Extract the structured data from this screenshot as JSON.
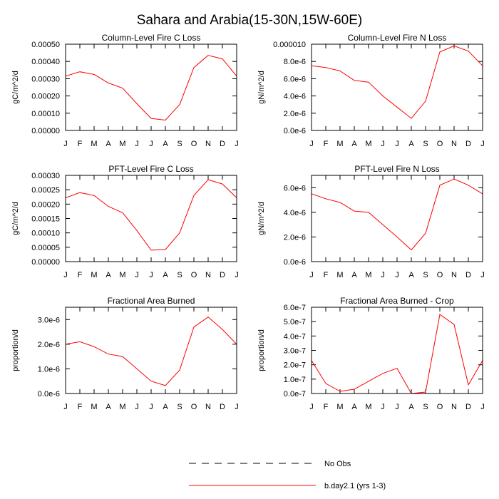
{
  "title": "Sahara and Arabia(15-30N,15W-60E)",
  "legend": [
    {
      "label": "No Obs",
      "style": "dashed",
      "color": "#000000"
    },
    {
      "label": "b.day2.1 (yrs 1-3)",
      "style": "solid",
      "color": "#ff0000"
    }
  ],
  "chart_data": [
    {
      "type": "line",
      "title": "Column-Level Fire C Loss",
      "ylabel": "gC/m^2/d",
      "categories": [
        "J",
        "F",
        "M",
        "A",
        "M",
        "J",
        "J",
        "A",
        "S",
        "O",
        "N",
        "D",
        "J"
      ],
      "ylim": [
        0,
        0.0005
      ],
      "yticks": [
        0,
        0.0001,
        0.0002,
        0.0003,
        0.0004,
        0.0005
      ],
      "ytick_labels": [
        "0.00000",
        "0.00010",
        "0.00020",
        "0.00030",
        "0.00040",
        "0.00050"
      ],
      "series": [
        {
          "name": "b.day2.1 (yrs 1-3)",
          "color": "#ff0000",
          "values": [
            0.000315,
            0.00034,
            0.000325,
            0.000275,
            0.000245,
            0.000155,
            7e-05,
            6e-05,
            0.00015,
            0.000365,
            0.000435,
            0.000415,
            0.000315
          ]
        }
      ]
    },
    {
      "type": "line",
      "title": "Column-Level Fire N Loss",
      "ylabel": "gN/m^2/d",
      "categories": [
        "J",
        "F",
        "M",
        "A",
        "M",
        "J",
        "J",
        "A",
        "S",
        "O",
        "N",
        "D",
        "J"
      ],
      "ylim": [
        0,
        1e-05
      ],
      "yticks": [
        0,
        2e-06,
        4e-06,
        6e-06,
        8e-06,
        1e-05
      ],
      "ytick_labels": [
        "0.0e-6",
        "2.0e-6",
        "4.0e-6",
        "6.0e-6",
        "8.0e-6",
        "0.000010"
      ],
      "series": [
        {
          "name": "b.day2.1 (yrs 1-3)",
          "color": "#ff0000",
          "values": [
            7.5e-06,
            7.3e-06,
            6.9e-06,
            5.8e-06,
            5.6e-06,
            4e-06,
            2.7e-06,
            1.4e-06,
            3.4e-06,
            9.1e-06,
            9.8e-06,
            9.2e-06,
            7.5e-06
          ]
        }
      ]
    },
    {
      "type": "line",
      "title": "PFT-Level Fire C Loss",
      "ylabel": "gC/m^2/d",
      "categories": [
        "J",
        "F",
        "M",
        "A",
        "M",
        "J",
        "J",
        "A",
        "S",
        "O",
        "N",
        "D",
        "J"
      ],
      "ylim": [
        0,
        0.0003
      ],
      "yticks": [
        0,
        5e-05,
        0.0001,
        0.00015,
        0.0002,
        0.00025,
        0.0003
      ],
      "ytick_labels": [
        "0.00000",
        "0.00005",
        "0.00010",
        "0.00015",
        "0.00020",
        "0.00025",
        "0.00030"
      ],
      "series": [
        {
          "name": "b.day2.1 (yrs 1-3)",
          "color": "#ff0000",
          "values": [
            0.000222,
            0.00024,
            0.00023,
            0.000192,
            0.00017,
            0.000108,
            4e-05,
            4.2e-05,
            0.0001,
            0.00023,
            0.000285,
            0.00027,
            0.000222
          ]
        }
      ]
    },
    {
      "type": "line",
      "title": "PFT-Level Fire N Loss",
      "ylabel": "gN/m^2/d",
      "categories": [
        "J",
        "F",
        "M",
        "A",
        "M",
        "J",
        "J",
        "A",
        "S",
        "O",
        "N",
        "D",
        "J"
      ],
      "ylim": [
        0,
        7e-06
      ],
      "yticks": [
        0,
        2e-06,
        4e-06,
        6e-06
      ],
      "ytick_labels": [
        "0.0e-6",
        "2.0e-6",
        "4.0e-6",
        "6.0e-6"
      ],
      "series": [
        {
          "name": "b.day2.1 (yrs 1-3)",
          "color": "#ff0000",
          "values": [
            5.5e-06,
            5.1e-06,
            4.8e-06,
            4.1e-06,
            4e-06,
            3e-06,
            2e-06,
            9.5e-07,
            2.3e-06,
            6.2e-06,
            6.7e-06,
            6.2e-06,
            5.5e-06
          ]
        }
      ]
    },
    {
      "type": "line",
      "title": "Fractional Area Burned",
      "ylabel": "proportion/d",
      "categories": [
        "J",
        "F",
        "M",
        "A",
        "M",
        "J",
        "J",
        "A",
        "S",
        "O",
        "N",
        "D",
        "J"
      ],
      "ylim": [
        0,
        3.5e-06
      ],
      "yticks": [
        0,
        1e-06,
        2e-06,
        3e-06
      ],
      "ytick_labels": [
        "0.0e-6",
        "1.0e-6",
        "2.0e-6",
        "3.0e-6"
      ],
      "series": [
        {
          "name": "b.day2.1 (yrs 1-3)",
          "color": "#ff0000",
          "values": [
            2e-06,
            2.1e-06,
            1.9e-06,
            1.6e-06,
            1.5e-06,
            1e-06,
            5e-07,
            3.2e-07,
            9.5e-07,
            2.7e-06,
            3.1e-06,
            2.6e-06,
            2e-06
          ]
        }
      ]
    },
    {
      "type": "line",
      "title": "Fractional Area Burned - Crop",
      "ylabel": "proportion/d",
      "categories": [
        "J",
        "F",
        "M",
        "A",
        "M",
        "J",
        "J",
        "A",
        "S",
        "O",
        "N",
        "D",
        "J"
      ],
      "ylim": [
        0,
        6e-07
      ],
      "yticks": [
        0,
        1e-07,
        2e-07,
        3e-07,
        4e-07,
        5e-07,
        6e-07
      ],
      "ytick_labels": [
        "0.0e-7",
        "1.0e-7",
        "2.0e-7",
        "3.0e-7",
        "4.0e-7",
        "5.0e-7",
        "6.0e-7"
      ],
      "series": [
        {
          "name": "b.day2.1 (yrs 1-3)",
          "color": "#ff0000",
          "values": [
            2.3e-07,
            7e-08,
            1.5e-08,
            3e-08,
            8.5e-08,
            1.4e-07,
            1.75e-07,
            0,
            1e-08,
            5.5e-07,
            4.8e-07,
            6e-08,
            2.3e-07
          ]
        }
      ]
    }
  ]
}
